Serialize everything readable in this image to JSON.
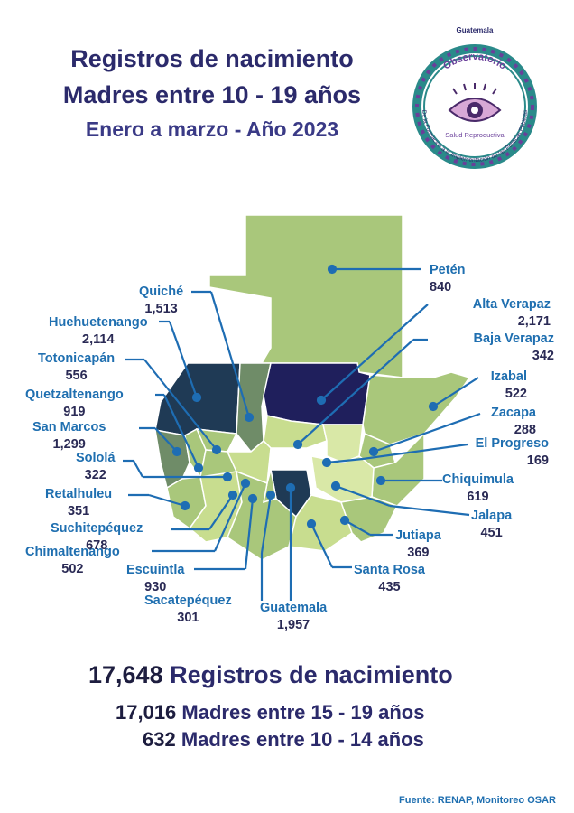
{
  "header": {
    "title_line1": "Registros de nacimiento",
    "title_line2": "Madres entre 10 - 19 años",
    "subtitle": "Enero a marzo - Año 2023"
  },
  "logo": {
    "country": "Guatemala",
    "name_line1": "Observatorio",
    "name_line2": "Salud Reproductiva",
    "motto": "De la Formación a la Implementación de las Políticas Públicas",
    "icon": "eye-icon"
  },
  "departments": [
    {
      "name": "Petén",
      "value": "840"
    },
    {
      "name": "Alta Verapaz",
      "value": "2,171"
    },
    {
      "name": "Baja Verapaz",
      "value": "342"
    },
    {
      "name": "Izabal",
      "value": "522"
    },
    {
      "name": "Zacapa",
      "value": "288"
    },
    {
      "name": "El Progreso",
      "value": "169"
    },
    {
      "name": "Chiquimula",
      "value": "619"
    },
    {
      "name": "Jalapa",
      "value": "451"
    },
    {
      "name": "Jutiapa",
      "value": "369"
    },
    {
      "name": "Santa Rosa",
      "value": "435"
    },
    {
      "name": "Guatemala",
      "value": "1,957"
    },
    {
      "name": "Sacatepéquez",
      "value": "301"
    },
    {
      "name": "Escuintla",
      "value": "930"
    },
    {
      "name": "Chimaltenango",
      "value": "502"
    },
    {
      "name": "Suchitepéquez",
      "value": "678"
    },
    {
      "name": "Retalhuleu",
      "value": "351"
    },
    {
      "name": "Sololá",
      "value": "322"
    },
    {
      "name": "San Marcos",
      "value": "1,299"
    },
    {
      "name": "Quetzaltenango",
      "value": "919"
    },
    {
      "name": "Totonicapán",
      "value": "556"
    },
    {
      "name": "Huehuetenango",
      "value": "2,114"
    },
    {
      "name": "Quiché",
      "value": "1,513"
    }
  ],
  "totals": {
    "total_value": "17,648",
    "total_label": "Registros de nacimiento",
    "age15_value": "17,016",
    "age15_label": "Madres entre 15 - 19 años",
    "age10_value": "632",
    "age10_label": "Madres entre 10 - 14 años"
  },
  "source": "Fuente: RENAP, Monitoreo OSAR",
  "colors": {
    "title": "#2b2a6b",
    "label": "#1f6fb0",
    "leader_line": "#1e6db3",
    "light_green": "#a9c77b",
    "pale_green": "#d9e8a7",
    "dark_navy": "#1f1f5c",
    "dark_teal": "#1f3a55",
    "gray_green": "#6f8c68"
  }
}
